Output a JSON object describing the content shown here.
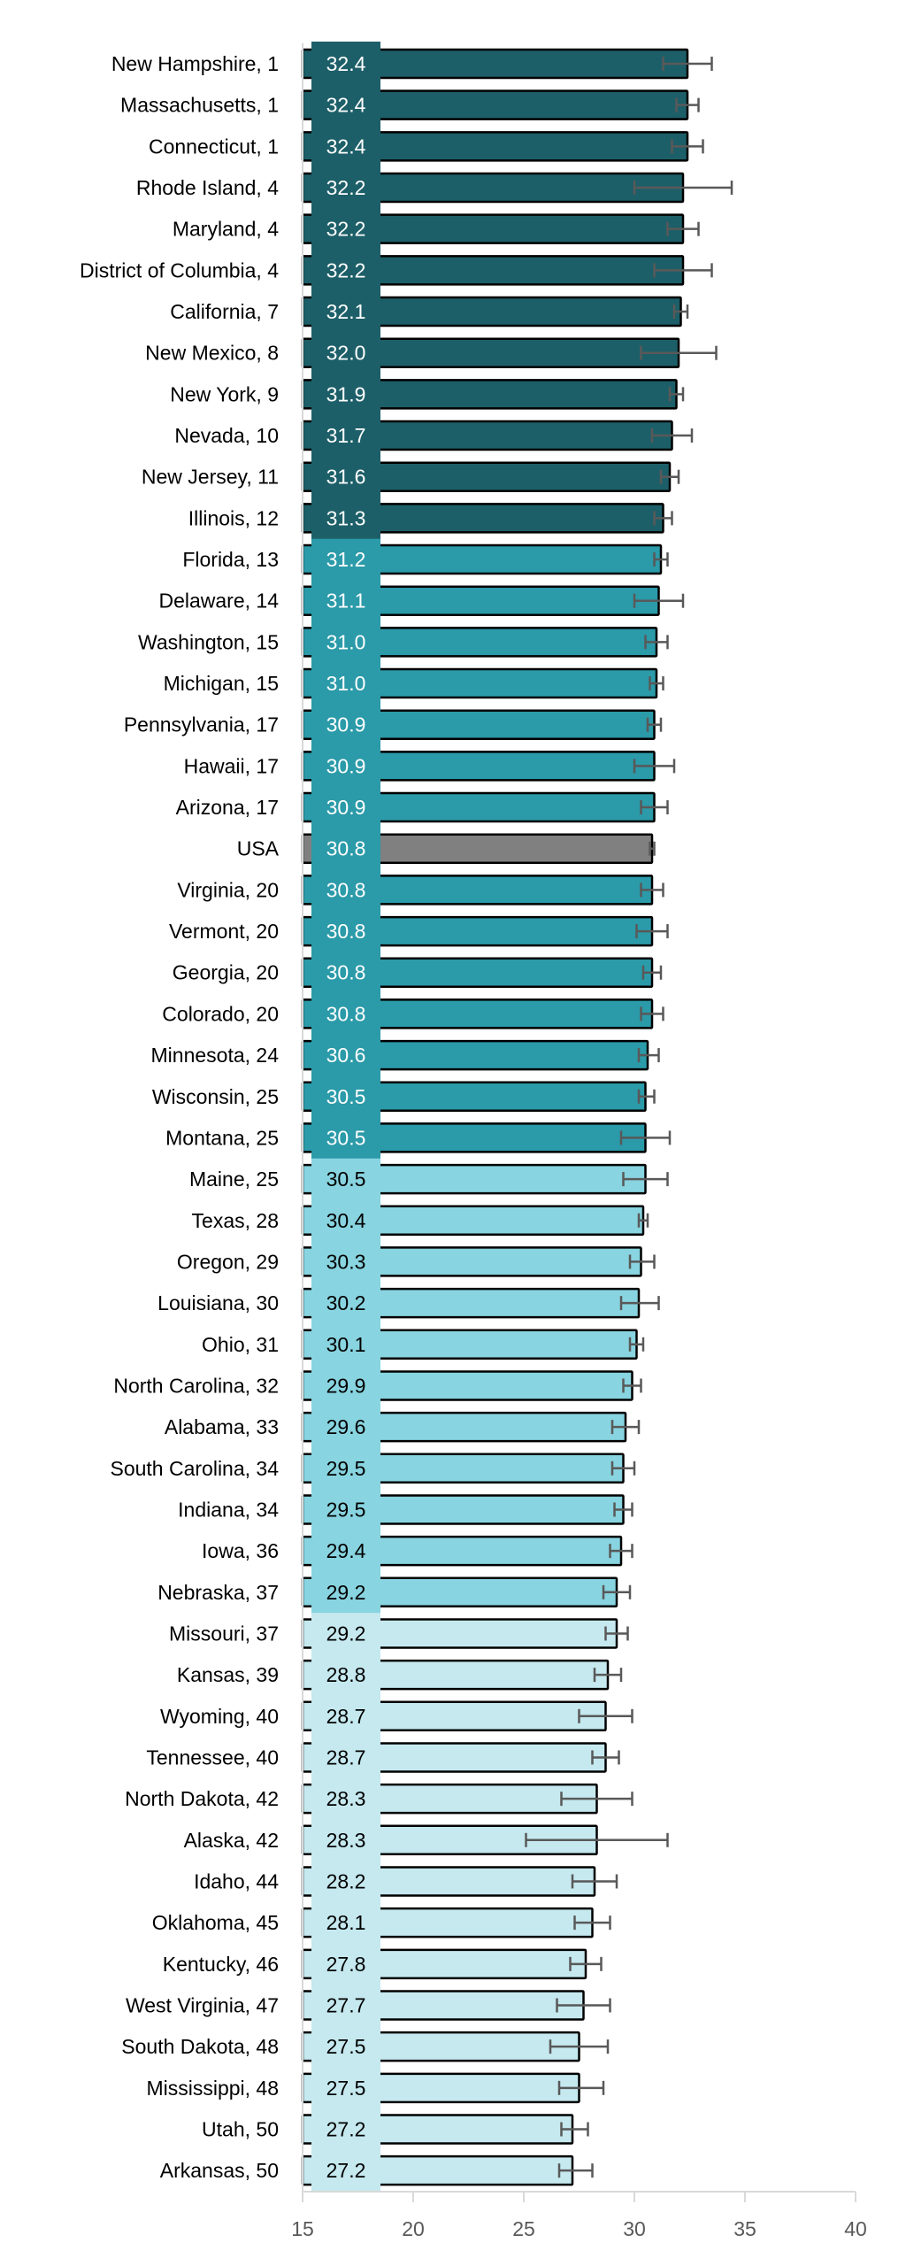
{
  "chart_data": {
    "type": "bar",
    "orientation": "horizontal",
    "title": "",
    "xlabel": "",
    "ylabel": "",
    "xlim": [
      15,
      40
    ],
    "xticks": [
      15,
      20,
      25,
      30,
      35,
      40
    ],
    "grid": false,
    "error_bars": true,
    "colors": {
      "group1": "#1d5f68",
      "group2": "#2b9aa9",
      "group3": "#88d4e0",
      "group4": "#c5e9ef",
      "usa": "#808080",
      "bar_border": "#000000",
      "error_bar": "#595959",
      "axis": "#d9d9d9"
    },
    "rows": [
      {
        "label": "New Hampshire, 1",
        "value": 32.4,
        "value_label": "32.4",
        "ci": [
          31.3,
          33.5
        ],
        "group": 1
      },
      {
        "label": "Massachusetts, 1",
        "value": 32.4,
        "value_label": "32.4",
        "ci": [
          31.9,
          32.9
        ],
        "group": 1
      },
      {
        "label": "Connecticut, 1",
        "value": 32.4,
        "value_label": "32.4",
        "ci": [
          31.7,
          33.1
        ],
        "group": 1
      },
      {
        "label": "Rhode Island, 4",
        "value": 32.2,
        "value_label": "32.2",
        "ci": [
          30.0,
          34.4
        ],
        "group": 1
      },
      {
        "label": "Maryland, 4",
        "value": 32.2,
        "value_label": "32.2",
        "ci": [
          31.5,
          32.9
        ],
        "group": 1
      },
      {
        "label": "District of Columbia, 4",
        "value": 32.2,
        "value_label": "32.2",
        "ci": [
          30.9,
          33.5
        ],
        "group": 1
      },
      {
        "label": "California, 7",
        "value": 32.1,
        "value_label": "32.1",
        "ci": [
          31.8,
          32.4
        ],
        "group": 1
      },
      {
        "label": "New Mexico, 8",
        "value": 32.0,
        "value_label": "32.0",
        "ci": [
          30.3,
          33.7
        ],
        "group": 1
      },
      {
        "label": "New York, 9",
        "value": 31.9,
        "value_label": "31.9",
        "ci": [
          31.6,
          32.2
        ],
        "group": 1
      },
      {
        "label": "Nevada, 10",
        "value": 31.7,
        "value_label": "31.7",
        "ci": [
          30.8,
          32.6
        ],
        "group": 1
      },
      {
        "label": "New Jersey, 11",
        "value": 31.6,
        "value_label": "31.6",
        "ci": [
          31.2,
          32.0
        ],
        "group": 1
      },
      {
        "label": "Illinois, 12",
        "value": 31.3,
        "value_label": "31.3",
        "ci": [
          30.9,
          31.7
        ],
        "group": 1
      },
      {
        "label": "Florida, 13",
        "value": 31.2,
        "value_label": "31.2",
        "ci": [
          30.9,
          31.5
        ],
        "group": 2
      },
      {
        "label": "Delaware, 14",
        "value": 31.1,
        "value_label": "31.1",
        "ci": [
          30.0,
          32.2
        ],
        "group": 2
      },
      {
        "label": "Washington, 15",
        "value": 31.0,
        "value_label": "31.0",
        "ci": [
          30.5,
          31.5
        ],
        "group": 2
      },
      {
        "label": "Michigan, 15",
        "value": 31.0,
        "value_label": "31.0",
        "ci": [
          30.7,
          31.3
        ],
        "group": 2
      },
      {
        "label": "Pennsylvania, 17",
        "value": 30.9,
        "value_label": "30.9",
        "ci": [
          30.6,
          31.2
        ],
        "group": 2
      },
      {
        "label": "Hawaii, 17",
        "value": 30.9,
        "value_label": "30.9",
        "ci": [
          30.0,
          31.8
        ],
        "group": 2
      },
      {
        "label": "Arizona, 17",
        "value": 30.9,
        "value_label": "30.9",
        "ci": [
          30.3,
          31.5
        ],
        "group": 2
      },
      {
        "label": "USA",
        "value": 30.8,
        "value_label": "30.8",
        "ci": [
          30.7,
          30.9
        ],
        "group": 0
      },
      {
        "label": "Virginia, 20",
        "value": 30.8,
        "value_label": "30.8",
        "ci": [
          30.3,
          31.3
        ],
        "group": 2
      },
      {
        "label": "Vermont, 20",
        "value": 30.8,
        "value_label": "30.8",
        "ci": [
          30.1,
          31.5
        ],
        "group": 2
      },
      {
        "label": "Georgia, 20",
        "value": 30.8,
        "value_label": "30.8",
        "ci": [
          30.4,
          31.2
        ],
        "group": 2
      },
      {
        "label": "Colorado, 20",
        "value": 30.8,
        "value_label": "30.8",
        "ci": [
          30.3,
          31.3
        ],
        "group": 2
      },
      {
        "label": "Minnesota, 24",
        "value": 30.6,
        "value_label": "30.6",
        "ci": [
          30.2,
          31.1
        ],
        "group": 2
      },
      {
        "label": "Wisconsin, 25",
        "value": 30.5,
        "value_label": "30.5",
        "ci": [
          30.2,
          30.9
        ],
        "group": 2
      },
      {
        "label": "Montana, 25",
        "value": 30.5,
        "value_label": "30.5",
        "ci": [
          29.4,
          31.6
        ],
        "group": 2
      },
      {
        "label": "Maine, 25",
        "value": 30.5,
        "value_label": "30.5",
        "ci": [
          29.5,
          31.5
        ],
        "group": 3
      },
      {
        "label": "Texas, 28",
        "value": 30.4,
        "value_label": "30.4",
        "ci": [
          30.2,
          30.6
        ],
        "group": 3
      },
      {
        "label": "Oregon, 29",
        "value": 30.3,
        "value_label": "30.3",
        "ci": [
          29.8,
          30.9
        ],
        "group": 3
      },
      {
        "label": "Louisiana, 30",
        "value": 30.2,
        "value_label": "30.2",
        "ci": [
          29.4,
          31.1
        ],
        "group": 3
      },
      {
        "label": "Ohio, 31",
        "value": 30.1,
        "value_label": "30.1",
        "ci": [
          29.8,
          30.4
        ],
        "group": 3
      },
      {
        "label": "North Carolina, 32",
        "value": 29.9,
        "value_label": "29.9",
        "ci": [
          29.5,
          30.3
        ],
        "group": 3
      },
      {
        "label": "Alabama, 33",
        "value": 29.6,
        "value_label": "29.6",
        "ci": [
          29.0,
          30.2
        ],
        "group": 3
      },
      {
        "label": "South Carolina, 34",
        "value": 29.5,
        "value_label": "29.5",
        "ci": [
          29.0,
          30.0
        ],
        "group": 3
      },
      {
        "label": "Indiana, 34",
        "value": 29.5,
        "value_label": "29.5",
        "ci": [
          29.1,
          29.9
        ],
        "group": 3
      },
      {
        "label": "Iowa, 36",
        "value": 29.4,
        "value_label": "29.4",
        "ci": [
          28.9,
          29.9
        ],
        "group": 3
      },
      {
        "label": "Nebraska, 37",
        "value": 29.2,
        "value_label": "29.2",
        "ci": [
          28.6,
          29.8
        ],
        "group": 3
      },
      {
        "label": "Missouri, 37",
        "value": 29.2,
        "value_label": "29.2",
        "ci": [
          28.7,
          29.7
        ],
        "group": 4
      },
      {
        "label": "Kansas, 39",
        "value": 28.8,
        "value_label": "28.8",
        "ci": [
          28.2,
          29.4
        ],
        "group": 4
      },
      {
        "label": "Wyoming, 40",
        "value": 28.7,
        "value_label": "28.7",
        "ci": [
          27.5,
          29.9
        ],
        "group": 4
      },
      {
        "label": "Tennessee, 40",
        "value": 28.7,
        "value_label": "28.7",
        "ci": [
          28.1,
          29.3
        ],
        "group": 4
      },
      {
        "label": "North Dakota, 42",
        "value": 28.3,
        "value_label": "28.3",
        "ci": [
          26.7,
          29.9
        ],
        "group": 4
      },
      {
        "label": "Alaska, 42",
        "value": 28.3,
        "value_label": "28.3",
        "ci": [
          25.1,
          31.5
        ],
        "group": 4
      },
      {
        "label": "Idaho, 44",
        "value": 28.2,
        "value_label": "28.2",
        "ci": [
          27.2,
          29.2
        ],
        "group": 4
      },
      {
        "label": "Oklahoma, 45",
        "value": 28.1,
        "value_label": "28.1",
        "ci": [
          27.3,
          28.9
        ],
        "group": 4
      },
      {
        "label": "Kentucky, 46",
        "value": 27.8,
        "value_label": "27.8",
        "ci": [
          27.1,
          28.5
        ],
        "group": 4
      },
      {
        "label": "West Virginia, 47",
        "value": 27.7,
        "value_label": "27.7",
        "ci": [
          26.5,
          28.9
        ],
        "group": 4
      },
      {
        "label": "South Dakota, 48",
        "value": 27.5,
        "value_label": "27.5",
        "ci": [
          26.2,
          28.8
        ],
        "group": 4
      },
      {
        "label": "Mississippi, 48",
        "value": 27.5,
        "value_label": "27.5",
        "ci": [
          26.6,
          28.6
        ],
        "group": 4
      },
      {
        "label": "Utah, 50",
        "value": 27.2,
        "value_label": "27.2",
        "ci": [
          26.7,
          27.9
        ],
        "group": 4
      },
      {
        "label": "Arkansas, 50",
        "value": 27.2,
        "value_label": "27.2",
        "ci": [
          26.6,
          28.1
        ],
        "group": 4
      }
    ],
    "tick_labels": [
      "15",
      "20",
      "25",
      "30",
      "35",
      "40"
    ]
  }
}
